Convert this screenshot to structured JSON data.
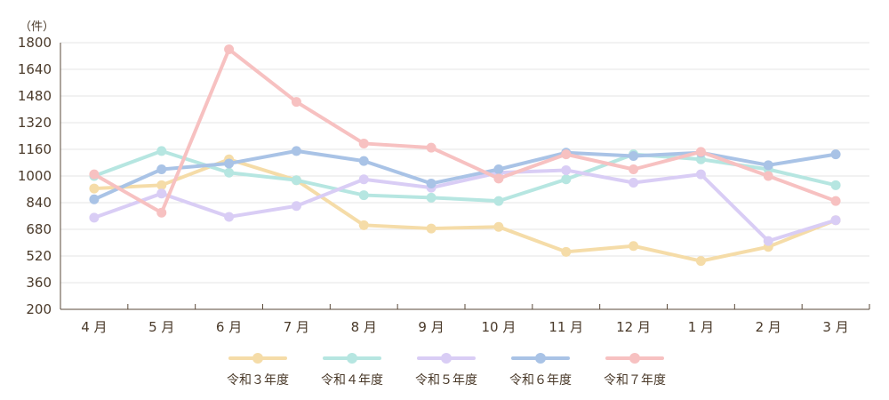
{
  "chart_data": {
    "type": "line",
    "unit_label": "（件）",
    "categories": [
      "4 月",
      "5 月",
      "6 月",
      "7 月",
      "8 月",
      "9 月",
      "10 月",
      "11 月",
      "12 月",
      "1 月",
      "2 月",
      "3 月"
    ],
    "ylim": [
      200,
      1800
    ],
    "yticks": [
      200,
      360,
      520,
      680,
      840,
      1000,
      1160,
      1320,
      1480,
      1640,
      1800
    ],
    "grid": true,
    "legend_position": "bottom",
    "series": [
      {
        "name": "令和３年度",
        "color": "#f5dca8",
        "values": [
          925,
          945,
          1100,
          975,
          705,
          685,
          695,
          545,
          580,
          490,
          575,
          735
        ]
      },
      {
        "name": "令和４年度",
        "color": "#b6e6e1",
        "values": [
          1000,
          1150,
          1020,
          975,
          885,
          870,
          850,
          980,
          1130,
          1100,
          1040,
          945
        ]
      },
      {
        "name": "令和５年度",
        "color": "#d9cdf5",
        "values": [
          750,
          895,
          755,
          820,
          980,
          930,
          1020,
          1035,
          960,
          1010,
          610,
          735
        ]
      },
      {
        "name": "令和６年度",
        "color": "#a9c3e6",
        "values": [
          860,
          1040,
          1075,
          1150,
          1090,
          955,
          1040,
          1140,
          1120,
          1140,
          1065,
          1130
        ]
      },
      {
        "name": "令和７年度",
        "color": "#f7c1c1",
        "values": [
          1010,
          780,
          1760,
          1445,
          1195,
          1170,
          985,
          1130,
          1040,
          1145,
          1000,
          850
        ]
      }
    ]
  }
}
